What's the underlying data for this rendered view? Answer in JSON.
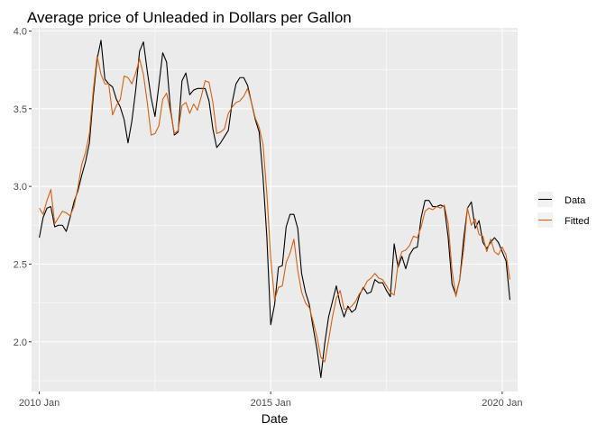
{
  "chart_data": {
    "type": "line",
    "title": "Average price of Unleaded in Dollars per Gallon",
    "xlabel": "Date",
    "ylabel": "",
    "xlim": [
      "2009-11",
      "2020-05"
    ],
    "ylim": [
      1.68,
      4.02
    ],
    "x_ticks": [
      "2010 Jan",
      "2015 Jan",
      "2020 Jan"
    ],
    "y_ticks": [
      "2.0",
      "2.5",
      "3.0",
      "3.5",
      "4.0"
    ],
    "grid": true,
    "legend_position": "right",
    "x": [
      "2010-01",
      "2010-02",
      "2010-03",
      "2010-04",
      "2010-05",
      "2010-06",
      "2010-07",
      "2010-08",
      "2010-09",
      "2010-10",
      "2010-11",
      "2010-12",
      "2011-01",
      "2011-02",
      "2011-03",
      "2011-04",
      "2011-05",
      "2011-06",
      "2011-07",
      "2011-08",
      "2011-09",
      "2011-10",
      "2011-11",
      "2011-12",
      "2012-01",
      "2012-02",
      "2012-03",
      "2012-04",
      "2012-05",
      "2012-06",
      "2012-07",
      "2012-08",
      "2012-09",
      "2012-10",
      "2012-11",
      "2012-12",
      "2013-01",
      "2013-02",
      "2013-03",
      "2013-04",
      "2013-05",
      "2013-06",
      "2013-07",
      "2013-08",
      "2013-09",
      "2013-10",
      "2013-11",
      "2013-12",
      "2014-01",
      "2014-02",
      "2014-03",
      "2014-04",
      "2014-05",
      "2014-06",
      "2014-07",
      "2014-08",
      "2014-09",
      "2014-10",
      "2014-11",
      "2014-12",
      "2015-01",
      "2015-02",
      "2015-03",
      "2015-04",
      "2015-05",
      "2015-06",
      "2015-07",
      "2015-08",
      "2015-09",
      "2015-10",
      "2015-11",
      "2015-12",
      "2016-01",
      "2016-02",
      "2016-03",
      "2016-04",
      "2016-05",
      "2016-06",
      "2016-07",
      "2016-08",
      "2016-09",
      "2016-10",
      "2016-11",
      "2016-12",
      "2017-01",
      "2017-02",
      "2017-03",
      "2017-04",
      "2017-05",
      "2017-06",
      "2017-07",
      "2017-08",
      "2017-09",
      "2017-10",
      "2017-11",
      "2017-12",
      "2018-01",
      "2018-02",
      "2018-03",
      "2018-04",
      "2018-05",
      "2018-06",
      "2018-07",
      "2018-08",
      "2018-09",
      "2018-10",
      "2018-11",
      "2018-12",
      "2019-01",
      "2019-02",
      "2019-03",
      "2019-04",
      "2019-05",
      "2019-06",
      "2019-07",
      "2019-08",
      "2019-09",
      "2019-10",
      "2019-11",
      "2019-12",
      "2020-01",
      "2020-02",
      "2020-03"
    ],
    "series": [
      {
        "name": "Data",
        "color": "#000000",
        "values": [
          2.67,
          2.8,
          2.86,
          2.87,
          2.74,
          2.75,
          2.75,
          2.71,
          2.8,
          2.9,
          2.97,
          3.07,
          3.16,
          3.28,
          3.58,
          3.82,
          3.94,
          3.69,
          3.66,
          3.64,
          3.56,
          3.51,
          3.43,
          3.28,
          3.42,
          3.62,
          3.87,
          3.93,
          3.74,
          3.57,
          3.45,
          3.65,
          3.86,
          3.8,
          3.5,
          3.33,
          3.35,
          3.68,
          3.73,
          3.59,
          3.62,
          3.63,
          3.63,
          3.63,
          3.55,
          3.37,
          3.25,
          3.28,
          3.32,
          3.36,
          3.54,
          3.66,
          3.7,
          3.7,
          3.65,
          3.54,
          3.43,
          3.35,
          3.06,
          2.67,
          2.11,
          2.24,
          2.48,
          2.49,
          2.74,
          2.82,
          2.82,
          2.73,
          2.44,
          2.32,
          2.24,
          2.09,
          1.95,
          1.77,
          1.99,
          2.16,
          2.26,
          2.36,
          2.24,
          2.16,
          2.23,
          2.19,
          2.21,
          2.3,
          2.35,
          2.31,
          2.32,
          2.4,
          2.38,
          2.38,
          2.33,
          2.29,
          2.63,
          2.48,
          2.55,
          2.47,
          2.56,
          2.6,
          2.61,
          2.8,
          2.91,
          2.91,
          2.87,
          2.87,
          2.88,
          2.87,
          2.67,
          2.37,
          2.3,
          2.4,
          2.66,
          2.86,
          2.9,
          2.73,
          2.78,
          2.64,
          2.6,
          2.64,
          2.67,
          2.64,
          2.58,
          2.52,
          2.27
        ]
      },
      {
        "name": "Fitted",
        "color": "#d95f0e",
        "values": [
          2.86,
          2.82,
          2.91,
          2.98,
          2.76,
          2.8,
          2.84,
          2.83,
          2.81,
          2.87,
          2.99,
          3.14,
          3.22,
          3.34,
          3.62,
          3.84,
          3.72,
          3.66,
          3.66,
          3.46,
          3.52,
          3.56,
          3.71,
          3.7,
          3.66,
          3.73,
          3.82,
          3.72,
          3.54,
          3.33,
          3.34,
          3.39,
          3.56,
          3.6,
          3.48,
          3.34,
          3.36,
          3.52,
          3.54,
          3.47,
          3.53,
          3.49,
          3.58,
          3.68,
          3.67,
          3.54,
          3.34,
          3.35,
          3.37,
          3.47,
          3.51,
          3.54,
          3.55,
          3.58,
          3.63,
          3.54,
          3.44,
          3.38,
          3.27,
          2.95,
          2.54,
          2.27,
          2.35,
          2.36,
          2.51,
          2.57,
          2.66,
          2.46,
          2.32,
          2.25,
          2.22,
          2.13,
          2.03,
          1.9,
          1.87,
          2.01,
          2.16,
          2.28,
          2.33,
          2.21,
          2.21,
          2.23,
          2.26,
          2.31,
          2.34,
          2.39,
          2.41,
          2.44,
          2.41,
          2.4,
          2.36,
          2.32,
          2.3,
          2.5,
          2.58,
          2.59,
          2.62,
          2.68,
          2.67,
          2.74,
          2.84,
          2.86,
          2.85,
          2.87,
          2.86,
          2.88,
          2.76,
          2.46,
          2.29,
          2.4,
          2.59,
          2.86,
          2.75,
          2.79,
          2.69,
          2.68,
          2.58,
          2.66,
          2.58,
          2.56,
          2.61,
          2.56,
          2.4
        ]
      }
    ]
  },
  "colors": {
    "panel_background": "#ebebeb",
    "grid_major": "#ffffff",
    "tick_label": "#4d4d4d"
  }
}
